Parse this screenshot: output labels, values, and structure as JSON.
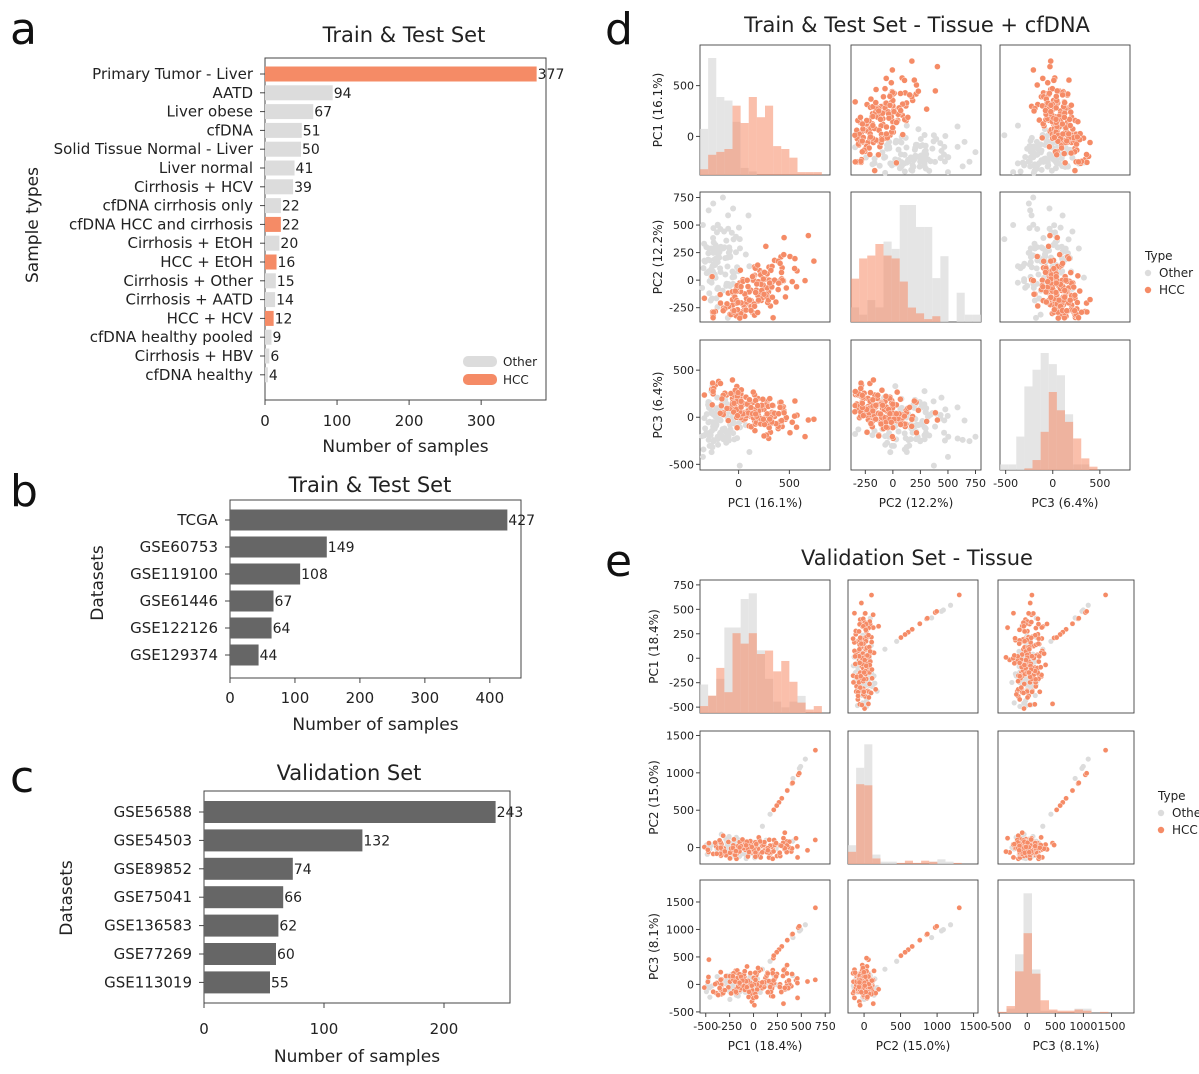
{
  "panels": {
    "a": {
      "letter": "a"
    },
    "b": {
      "letter": "b"
    },
    "c": {
      "letter": "c"
    },
    "d": {
      "letter": "d"
    },
    "e": {
      "letter": "e"
    }
  },
  "colors": {
    "hcc": "#f58b66",
    "other": "#dcdcdc",
    "dark_bar": "#666666",
    "frame": "#444444"
  },
  "chart_data": [
    {
      "id": "a",
      "type": "bar",
      "orientation": "horizontal",
      "title": "Train & Test Set",
      "xlabel": "Number of samples",
      "ylabel": "Sample types",
      "xlim": [
        0,
        390
      ],
      "xticks": [
        0,
        100,
        200,
        300
      ],
      "categories": [
        "Primary Tumor - Liver",
        "AATD",
        "Liver obese",
        "cfDNA",
        "Solid Tissue Normal - Liver",
        "Liver normal",
        "Cirrhosis + HCV",
        "cfDNA cirrhosis only",
        "cfDNA HCC and cirrhosis",
        "Cirrhosis + EtOH",
        "HCC + EtOH",
        "Cirrhosis + Other",
        "Cirrhosis + AATD",
        "HCC + HCV",
        "cfDNA healthy pooled",
        "Cirrhosis + HBV",
        "cfDNA healthy"
      ],
      "values": [
        377,
        94,
        67,
        51,
        50,
        41,
        39,
        22,
        22,
        20,
        16,
        15,
        14,
        12,
        9,
        6,
        4
      ],
      "group": [
        "HCC",
        "Other",
        "Other",
        "Other",
        "Other",
        "Other",
        "Other",
        "Other",
        "HCC",
        "Other",
        "HCC",
        "Other",
        "Other",
        "HCC",
        "Other",
        "Other",
        "Other"
      ],
      "legend": [
        {
          "name": "Other",
          "color": "#dcdcdc"
        },
        {
          "name": "HCC",
          "color": "#f58b66"
        }
      ],
      "legend_position": "bottom-right"
    },
    {
      "id": "b",
      "type": "bar",
      "orientation": "horizontal",
      "title": "Train & Test Set",
      "xlabel": "Number of samples",
      "ylabel": "Datasets",
      "xlim": [
        0,
        448
      ],
      "xticks": [
        0,
        100,
        200,
        300,
        400
      ],
      "categories": [
        "TCGA",
        "GSE60753",
        "GSE119100",
        "GSE61446",
        "GSE122126",
        "GSE129374"
      ],
      "values": [
        427,
        149,
        108,
        67,
        64,
        44
      ]
    },
    {
      "id": "c",
      "type": "bar",
      "orientation": "horizontal",
      "title": "Validation Set",
      "xlabel": "Number of samples",
      "ylabel": "Datasets",
      "xlim": [
        0,
        255
      ],
      "xticks": [
        0,
        100,
        200
      ],
      "categories": [
        "GSE56588",
        "GSE54503",
        "GSE89852",
        "GSE75041",
        "GSE136583",
        "GSE77269",
        "GSE113019"
      ],
      "values": [
        243,
        132,
        74,
        66,
        62,
        60,
        55
      ]
    },
    {
      "id": "d",
      "type": "scatter",
      "subtype": "pairplot",
      "title": "Train & Test Set - Tissue + cfDNA",
      "variables": [
        "PC1 (16.1%)",
        "PC2 (12.2%)",
        "PC3 (6.4%)"
      ],
      "var_ranges": [
        [
          -380,
          900
        ],
        [
          -380,
          800
        ],
        [
          -560,
          820
        ]
      ],
      "ticks": [
        [
          0,
          500
        ],
        [
          -250,
          0,
          250,
          500,
          750
        ],
        [
          -500,
          0,
          500
        ]
      ],
      "legend_title": "Type",
      "legend": [
        {
          "name": "Other",
          "color": "#dcdcdc"
        },
        {
          "name": "HCC",
          "color": "#f58b66"
        }
      ],
      "legend_position": "right",
      "diagonal": "histogram"
    },
    {
      "id": "e",
      "type": "scatter",
      "subtype": "pairplot",
      "title": "Validation Set - Tissue",
      "variables": [
        "PC1 (18.4%)",
        "PC2 (15.0%)",
        "PC3 (8.1%)"
      ],
      "var_ranges": [
        [
          -560,
          800
        ],
        [
          -220,
          1560
        ],
        [
          -520,
          1900
        ]
      ],
      "ticks": [
        [
          -500,
          -250,
          0,
          250,
          500,
          750
        ],
        [
          0,
          500,
          1000,
          1500
        ],
        [
          -500,
          0,
          500,
          1000,
          1500
        ]
      ],
      "legend_title": "Type",
      "legend": [
        {
          "name": "Other",
          "color": "#dcdcdc"
        },
        {
          "name": "HCC",
          "color": "#f58b66"
        }
      ],
      "legend_position": "right",
      "diagonal": "histogram"
    }
  ]
}
